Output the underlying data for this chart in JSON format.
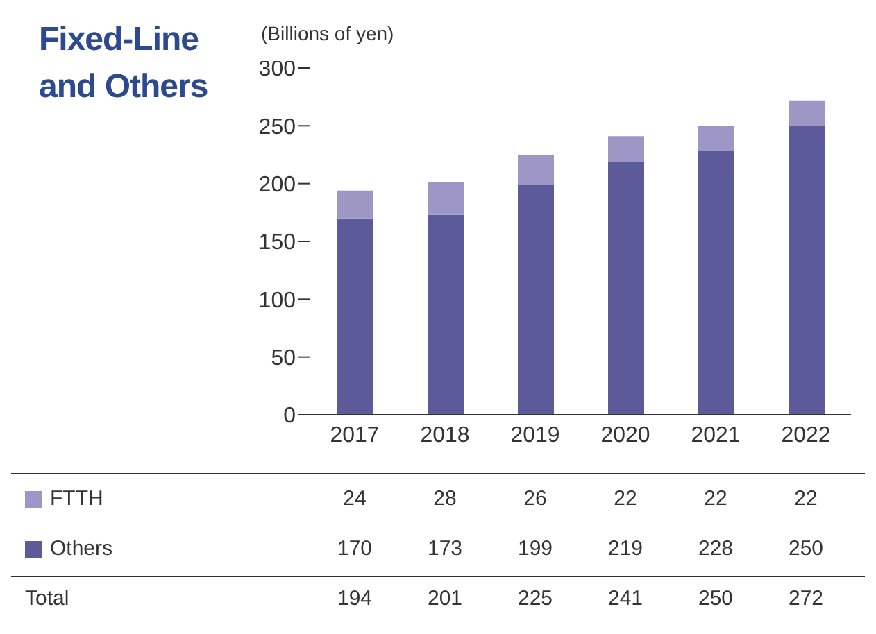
{
  "chart_data": {
    "type": "bar",
    "title": "Fixed-Line and Others",
    "ylabel": "(Billions of yen)",
    "categories": [
      "2017",
      "2018",
      "2019",
      "2020",
      "2021",
      "2022"
    ],
    "series": [
      {
        "name": "Others",
        "color": "#5d5a99",
        "values": [
          170,
          173,
          199,
          219,
          228,
          250
        ]
      },
      {
        "name": "FTTH",
        "color": "#9e97c6",
        "values": [
          24,
          28,
          26,
          22,
          22,
          22
        ]
      }
    ],
    "stacked": true,
    "ylim": [
      0,
      300
    ],
    "yticks": [
      0,
      50,
      100,
      150,
      200,
      250,
      300
    ],
    "grid": false,
    "legend": "bottom",
    "data_labels": true,
    "annotations": [
      "Total",
      "194",
      "201",
      "225",
      "241",
      "250",
      "272"
    ]
  }
}
